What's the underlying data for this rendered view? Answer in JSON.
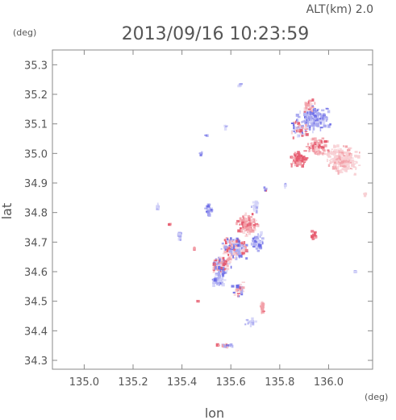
{
  "chart_data": {
    "type": "scatter",
    "title": "2013/09/16 10:23:59",
    "subtitle": "ALT(km) 2.0",
    "xlabel": "lon",
    "ylabel": "lat",
    "x_unit": "(deg)",
    "y_unit": "(deg)",
    "xlim": [
      134.87,
      136.18
    ],
    "ylim": [
      34.27,
      35.35
    ],
    "x_ticks": [
      135.0,
      135.2,
      135.4,
      135.6,
      135.8,
      136.0
    ],
    "x_tick_labels": [
      "135.0",
      "135.2",
      "135.4",
      "135.6",
      "135.8",
      "136.0"
    ],
    "y_ticks": [
      34.3,
      34.4,
      34.5,
      34.6,
      34.7,
      34.8,
      34.9,
      35.0,
      35.1,
      35.2,
      35.3
    ],
    "y_tick_labels": [
      "34.3",
      "34.4",
      "34.5",
      "34.6",
      "34.7",
      "34.8",
      "34.9",
      "35.0",
      "35.1",
      "35.2",
      "35.3"
    ],
    "grid": false,
    "colors": {
      "positive_strong": "#e65a6e",
      "positive": "#f2a0a8",
      "positive_light": "#f8d0d4",
      "negative_strong": "#6a6ae6",
      "negative": "#a8a8f0",
      "negative_light": "#d4d4f8",
      "axis": "#888888",
      "text": "#555555"
    },
    "clusters": [
      {
        "lon": 135.94,
        "lat": 35.12,
        "spread_lon": 0.08,
        "spread_lat": 0.05,
        "density": 180,
        "tone": "negative"
      },
      {
        "lon": 135.88,
        "lat": 35.08,
        "spread_lon": 0.05,
        "spread_lat": 0.04,
        "density": 60,
        "tone": "mixed"
      },
      {
        "lon": 135.95,
        "lat": 35.02,
        "spread_lon": 0.06,
        "spread_lat": 0.04,
        "density": 110,
        "tone": "positive"
      },
      {
        "lon": 136.06,
        "lat": 34.98,
        "spread_lon": 0.08,
        "spread_lat": 0.06,
        "density": 200,
        "tone": "positive_light"
      },
      {
        "lon": 135.88,
        "lat": 34.98,
        "spread_lon": 0.04,
        "spread_lat": 0.03,
        "density": 70,
        "tone": "positive_strong"
      },
      {
        "lon": 135.92,
        "lat": 35.16,
        "spread_lon": 0.03,
        "spread_lat": 0.03,
        "density": 30,
        "tone": "positive"
      },
      {
        "lon": 135.67,
        "lat": 34.76,
        "spread_lon": 0.05,
        "spread_lat": 0.04,
        "density": 140,
        "tone": "positive"
      },
      {
        "lon": 135.62,
        "lat": 34.68,
        "spread_lon": 0.07,
        "spread_lat": 0.05,
        "density": 190,
        "tone": "mixed"
      },
      {
        "lon": 135.56,
        "lat": 34.62,
        "spread_lon": 0.05,
        "spread_lat": 0.04,
        "density": 120,
        "tone": "mixed"
      },
      {
        "lon": 135.55,
        "lat": 34.57,
        "spread_lon": 0.04,
        "spread_lat": 0.03,
        "density": 60,
        "tone": "negative"
      },
      {
        "lon": 135.71,
        "lat": 34.7,
        "spread_lon": 0.03,
        "spread_lat": 0.04,
        "density": 60,
        "tone": "negative"
      },
      {
        "lon": 135.7,
        "lat": 34.82,
        "spread_lon": 0.02,
        "spread_lat": 0.02,
        "density": 25,
        "tone": "negative_light"
      },
      {
        "lon": 135.51,
        "lat": 34.81,
        "spread_lon": 0.02,
        "spread_lat": 0.03,
        "density": 30,
        "tone": "negative"
      },
      {
        "lon": 135.63,
        "lat": 34.54,
        "spread_lon": 0.03,
        "spread_lat": 0.03,
        "density": 35,
        "tone": "mixed"
      },
      {
        "lon": 135.73,
        "lat": 34.48,
        "spread_lon": 0.01,
        "spread_lat": 0.03,
        "density": 20,
        "tone": "positive"
      },
      {
        "lon": 135.68,
        "lat": 34.43,
        "spread_lon": 0.03,
        "spread_lat": 0.02,
        "density": 15,
        "tone": "negative_light"
      },
      {
        "lon": 135.58,
        "lat": 34.35,
        "spread_lon": 0.05,
        "spread_lat": 0.01,
        "density": 25,
        "tone": "mixed"
      },
      {
        "lon": 135.94,
        "lat": 34.72,
        "spread_lon": 0.015,
        "spread_lat": 0.02,
        "density": 20,
        "tone": "positive_strong"
      },
      {
        "lon": 135.39,
        "lat": 34.72,
        "spread_lon": 0.01,
        "spread_lat": 0.02,
        "density": 12,
        "tone": "negative"
      },
      {
        "lon": 135.3,
        "lat": 34.82,
        "spread_lon": 0.01,
        "spread_lat": 0.02,
        "density": 10,
        "tone": "negative_light"
      },
      {
        "lon": 135.58,
        "lat": 35.09,
        "spread_lon": 0.01,
        "spread_lat": 0.01,
        "density": 8,
        "tone": "negative_light"
      },
      {
        "lon": 135.64,
        "lat": 35.23,
        "spread_lon": 0.01,
        "spread_lat": 0.01,
        "density": 8,
        "tone": "negative"
      },
      {
        "lon": 135.48,
        "lat": 35.0,
        "spread_lon": 0.01,
        "spread_lat": 0.01,
        "density": 6,
        "tone": "negative"
      },
      {
        "lon": 135.5,
        "lat": 35.06,
        "spread_lon": 0.006,
        "spread_lat": 0.006,
        "density": 3,
        "tone": "negative"
      },
      {
        "lon": 135.82,
        "lat": 34.89,
        "spread_lon": 0.008,
        "spread_lat": 0.008,
        "density": 5,
        "tone": "negative"
      },
      {
        "lon": 136.15,
        "lat": 34.86,
        "spread_lon": 0.01,
        "spread_lat": 0.01,
        "density": 6,
        "tone": "positive_light"
      },
      {
        "lon": 136.11,
        "lat": 34.6,
        "spread_lon": 0.004,
        "spread_lat": 0.004,
        "density": 2,
        "tone": "negative"
      },
      {
        "lon": 135.45,
        "lat": 34.68,
        "spread_lon": 0.006,
        "spread_lat": 0.006,
        "density": 3,
        "tone": "positive_strong"
      },
      {
        "lon": 135.47,
        "lat": 34.5,
        "spread_lon": 0.006,
        "spread_lat": 0.006,
        "density": 3,
        "tone": "positive_strong"
      },
      {
        "lon": 135.74,
        "lat": 34.88,
        "spread_lon": 0.01,
        "spread_lat": 0.008,
        "density": 6,
        "tone": "mixed"
      },
      {
        "lon": 135.35,
        "lat": 34.76,
        "spread_lon": 0.006,
        "spread_lat": 0.006,
        "density": 3,
        "tone": "positive"
      }
    ]
  }
}
